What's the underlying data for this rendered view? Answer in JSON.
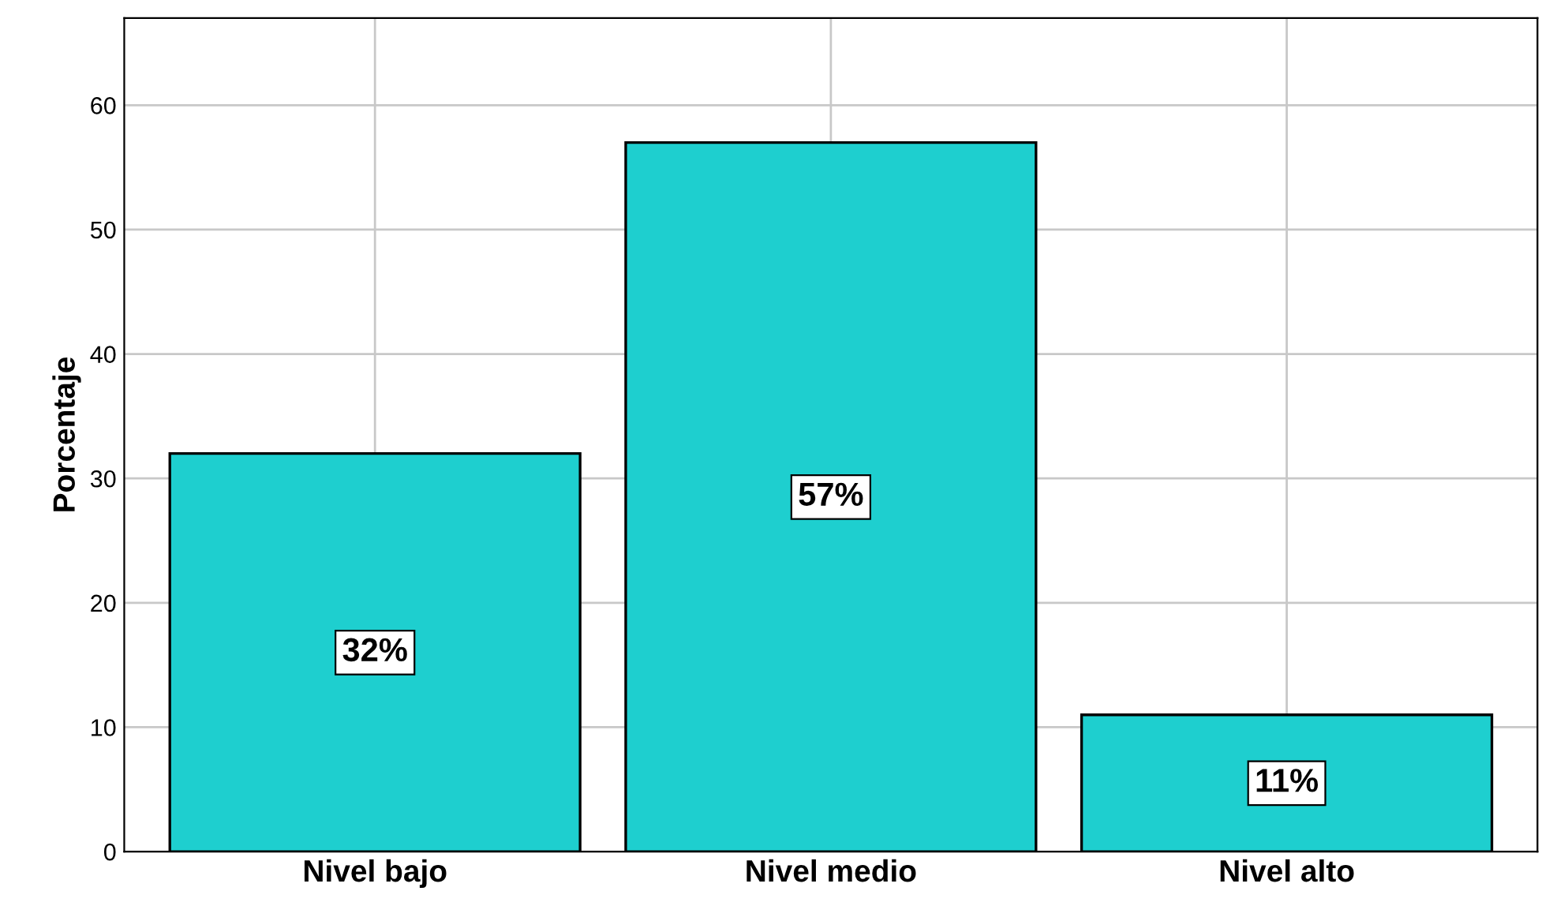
{
  "chart_data": {
    "type": "bar",
    "ylabel": "Porcentaje",
    "categories": [
      "Nivel bajo",
      "Nivel medio",
      "Nivel alto"
    ],
    "values": [
      32,
      57,
      11
    ],
    "value_labels": [
      "32%",
      "57%",
      "11%"
    ],
    "color": "#1ecfcf",
    "ylim": [
      0,
      67
    ],
    "yticks": [
      0,
      10,
      20,
      30,
      40,
      50,
      60
    ],
    "grid": true,
    "legend": false
  }
}
